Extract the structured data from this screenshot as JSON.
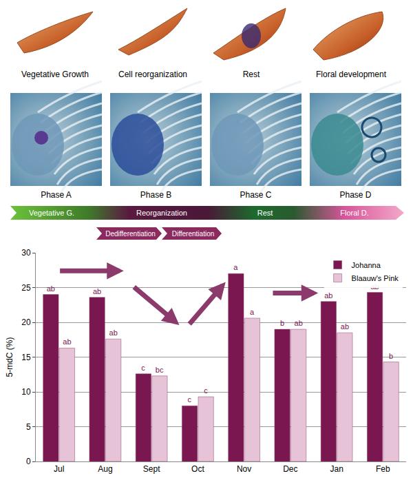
{
  "photo_labels": [
    "Vegetative Growth",
    "Cell reorganization",
    "Rest",
    "Floral development"
  ],
  "phase_labels": [
    "Phase A",
    "Phase B",
    "Phase C",
    "Phase D"
  ],
  "timeline": [
    "Vegetative G.",
    "Reorganization",
    "Rest",
    "Floral D."
  ],
  "sub_timeline": [
    "Dedifferentiation",
    "Differentiation"
  ],
  "chart_data": {
    "type": "bar",
    "categories": [
      "Jul",
      "Aug",
      "Sept",
      "Oct",
      "Nov",
      "Dec",
      "Jan",
      "Feb"
    ],
    "series": [
      {
        "name": "Johanna",
        "color": "#7a1650",
        "values": [
          24,
          23.6,
          12.6,
          8,
          27,
          19,
          23,
          24.3
        ],
        "annotations": [
          "ab",
          "ab",
          "c",
          "c",
          "a",
          "b",
          "ab",
          "ab"
        ]
      },
      {
        "name": "Blaauw's Pink",
        "color": "#e6c3d6",
        "values": [
          16.3,
          17.6,
          12.3,
          9.3,
          20.6,
          19,
          18.5,
          14.3
        ],
        "annotations": [
          "ab",
          "ab",
          "bc",
          "c",
          "a",
          "ab",
          "ab",
          "b"
        ]
      }
    ],
    "y_label": "5-mdC (%)",
    "ylim": [
      0,
      30
    ],
    "yticks": [
      0,
      5,
      10,
      15,
      20,
      25,
      30
    ],
    "grid": true,
    "legend": "upper right"
  }
}
